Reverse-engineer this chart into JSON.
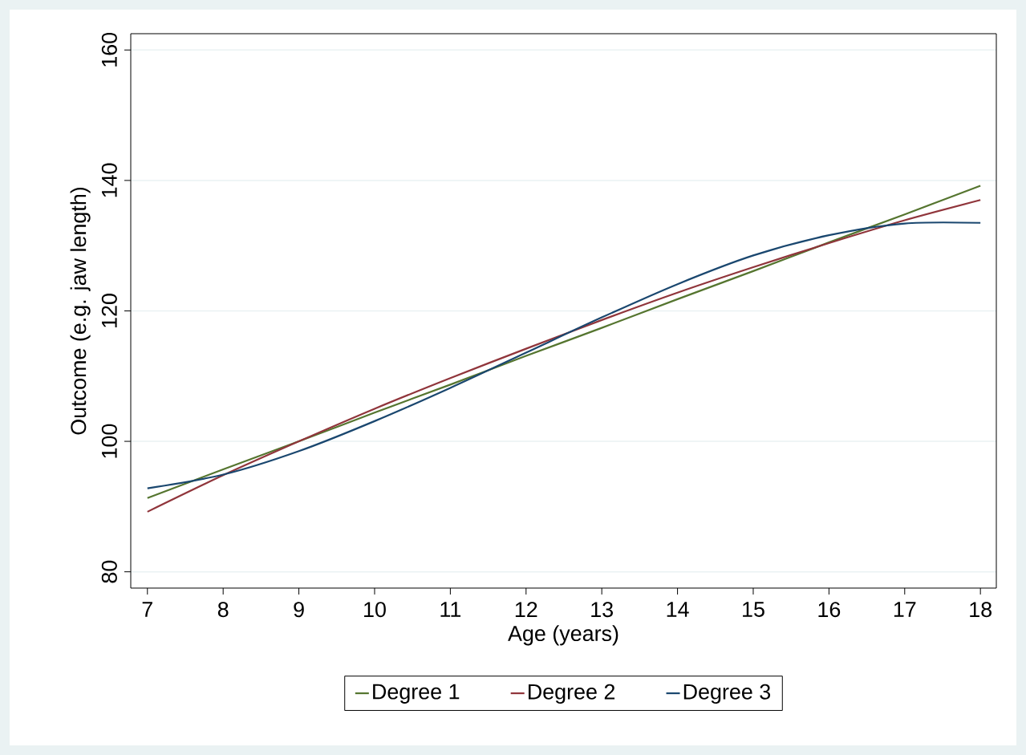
{
  "chart_data": {
    "type": "line",
    "xlabel": "Age (years)",
    "ylabel": "Outcome (e.g. jaw length)",
    "x": [
      7,
      8,
      9,
      10,
      11,
      12,
      13,
      14,
      15,
      16,
      17,
      18
    ],
    "series": [
      {
        "name": "Degree 1",
        "color": "#55752f",
        "values": [
          91.3,
          95.7,
          100.0,
          104.4,
          108.7,
          113.1,
          117.4,
          121.8,
          126.1,
          130.5,
          134.8,
          139.2
        ]
      },
      {
        "name": "Degree 2",
        "color": "#90353b",
        "values": [
          89.2,
          94.8,
          100.0,
          105.0,
          109.7,
          114.2,
          118.6,
          122.8,
          126.7,
          130.4,
          133.9,
          137.0
        ]
      },
      {
        "name": "Degree 3",
        "color": "#1a476f",
        "values": [
          92.8,
          94.9,
          98.5,
          103.1,
          108.2,
          113.6,
          119.0,
          124.1,
          128.5,
          131.6,
          133.4,
          133.5
        ]
      }
    ],
    "xlim": [
      6.78,
      18.21
    ],
    "ylim": [
      77.5,
      162.5
    ],
    "xticks": [
      7,
      8,
      9,
      10,
      11,
      12,
      13,
      14,
      15,
      16,
      17,
      18
    ],
    "yticks": [
      80,
      100,
      120,
      140,
      160
    ],
    "grid": "y",
    "legend": "bottom",
    "marker": "none",
    "line_style": "solid"
  }
}
